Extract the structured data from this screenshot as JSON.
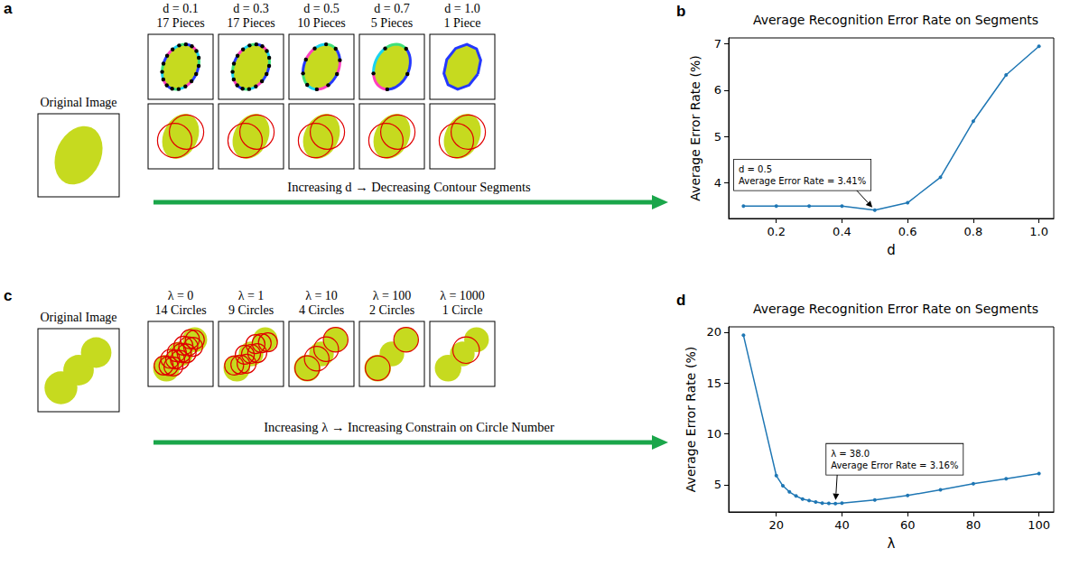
{
  "diagrams": [
    {
      "panel": "a",
      "type": "contour_segments",
      "original_label": "Original Image",
      "columns": [
        {
          "header": "d = 0.1",
          "count": {
            "value": 17,
            "label": "17 Pieces"
          }
        },
        {
          "header": "d = 0.3",
          "count": {
            "value": 17,
            "label": "17 Pieces"
          }
        },
        {
          "header": "d = 0.5",
          "count": {
            "value": 10,
            "label": "10 Pieces"
          }
        },
        {
          "header": "d = 0.7",
          "count": {
            "value": 5,
            "label": "5 Pieces"
          }
        },
        {
          "header": "d = 1.0",
          "count": {
            "value": 1,
            "label": "1 Piece"
          }
        }
      ],
      "arrow_label": "Increasing d → Decreasing Contour Segments"
    },
    {
      "panel": "c",
      "type": "circle_fit",
      "original_label": "Original Image",
      "columns": [
        {
          "header": "λ = 0",
          "count": {
            "value": 14,
            "label": "14 Circles"
          }
        },
        {
          "header": "λ = 1",
          "count": {
            "value": 9,
            "label": "9 Circles"
          }
        },
        {
          "header": "λ = 10",
          "count": {
            "value": 4,
            "label": "4 Circles"
          }
        },
        {
          "header": "λ = 100",
          "count": {
            "value": 2,
            "label": "2 Circles"
          }
        },
        {
          "header": "λ = 1000",
          "count": {
            "value": 1,
            "label": "1 Circle"
          }
        }
      ],
      "arrow_label": "Increasing λ → Increasing Constrain on Circle Number"
    }
  ],
  "chart_data": [
    {
      "panel": "b",
      "type": "line",
      "title": "Average Recognition Error Rate on Segments",
      "x_label": "d",
      "y_label": "Average Error Rate (%)",
      "x": [
        0.1,
        0.2,
        0.3,
        0.4,
        0.5,
        0.6,
        0.7,
        0.8,
        0.9,
        1.0
      ],
      "values": [
        3.5,
        3.5,
        3.5,
        3.5,
        3.41,
        3.57,
        4.12,
        5.33,
        6.33,
        6.95
      ],
      "color": "#1f77b4",
      "marker": "circle",
      "xlim": [
        0.055,
        1.045
      ],
      "xticks": [
        0.2,
        0.4,
        0.6,
        0.8,
        {
          "value": 1.0,
          "label": "1.0"
        }
      ],
      "ylim": [
        3.23,
        7.13
      ],
      "yticks": [
        4,
        5,
        6,
        7
      ],
      "grid": false,
      "annotation": {
        "text": [
          "d = 0.5",
          "Average Error Rate = 3.41%"
        ],
        "x": 0.5,
        "y": 3.41
      }
    },
    {
      "panel": "d",
      "type": "line",
      "title": "Average Recognition Error Rate on Segments",
      "x_label": "λ",
      "y_label": "Average Error Rate (%)",
      "x": [
        10,
        20,
        22,
        24,
        26,
        28,
        30,
        32,
        34,
        36,
        38,
        40,
        50,
        60,
        70,
        80,
        90,
        100
      ],
      "values": [
        19.7,
        5.9,
        4.9,
        4.3,
        3.9,
        3.6,
        3.45,
        3.3,
        3.2,
        3.17,
        3.16,
        3.2,
        3.5,
        3.95,
        4.5,
        5.1,
        5.6,
        6.1
      ],
      "color": "#1f77b4",
      "marker": "circle",
      "xlim": [
        5.5,
        104.5
      ],
      "xticks": [
        20,
        40,
        60,
        80,
        100
      ],
      "ylim": [
        2.33,
        20.53
      ],
      "yticks": [
        5,
        10,
        15,
        20
      ],
      "grid": false,
      "annotation": {
        "text": [
          "λ = 38.0",
          "Average Error Rate = 3.16%"
        ],
        "x": 38,
        "y": 3.16
      }
    }
  ]
}
